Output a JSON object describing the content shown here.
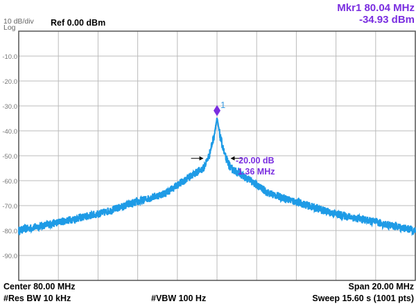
{
  "header": {
    "scale": "10 dB/div",
    "mode": "Log",
    "ref": "Ref 0.00 dBm",
    "marker_freq": "Mkr1 80.04 MHz",
    "marker_level": "-34.93 dBm"
  },
  "footer": {
    "center": "Center 80.00 MHz",
    "span": "Span 20.00 MHz",
    "rbw": "#Res BW 10 kHz",
    "vbw": "#VBW 100 Hz",
    "sweep": "Sweep  15.60 s (1001 pts)"
  },
  "chart_data": {
    "type": "line",
    "xlim": [
      70,
      90
    ],
    "xunit": "MHz",
    "ylim": [
      -100,
      0
    ],
    "yunit": "dBm",
    "grid": true,
    "yticks": [
      "-10.0",
      "-20.0",
      "-30.0",
      "-40.0",
      "-50.0",
      "-60.0",
      "-70.0",
      "-80.0",
      "-90.0"
    ],
    "trace_color": "#1e9be6",
    "points": 1001,
    "trace_profile": {
      "offset_mhz": [
        0,
        0.15,
        0.4,
        0.68,
        1.2,
        2.6,
        5.8,
        10
      ],
      "level_dbm": [
        -35,
        -42,
        -50,
        -55,
        -57.5,
        -65,
        -73,
        -80
      ]
    },
    "marker": {
      "label": "1",
      "freq_mhz": 80.04,
      "level_dbm": -34.93,
      "color": "#7a2ee0"
    },
    "bandwidth_annotation": {
      "delta": "-20.00 dB",
      "width": "1.36 MHz",
      "width_mhz": 1.36,
      "level_dbm": -54.93
    }
  }
}
